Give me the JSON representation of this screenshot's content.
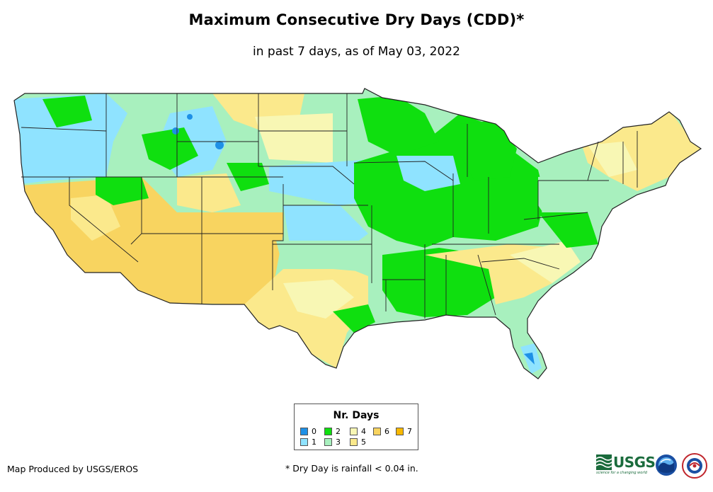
{
  "title": "Maximum Consecutive Dry Days (CDD)*",
  "subtitle": "in past 7 days, as of May 03, 2022",
  "legend": {
    "title": "Nr. Days",
    "items": [
      {
        "label": "0",
        "color": "#1e90e6"
      },
      {
        "label": "1",
        "color": "#8fe3ff"
      },
      {
        "label": "2",
        "color": "#0fdf0f"
      },
      {
        "label": "3",
        "color": "#a8f0be"
      },
      {
        "label": "4",
        "color": "#f8f7b4"
      },
      {
        "label": "5",
        "color": "#fbe98c"
      },
      {
        "label": "6",
        "color": "#f8d460"
      },
      {
        "label": "7",
        "color": "#f8b800"
      }
    ]
  },
  "credit": "Map Produced by USGS/EROS",
  "footnote": "* Dry Day is rainfall < 0.04 in.",
  "logos": {
    "usgs": "USGS",
    "usgs_tagline": "science for a changing world",
    "noaa": "noaa-logo",
    "nws": "nws-logo"
  }
}
